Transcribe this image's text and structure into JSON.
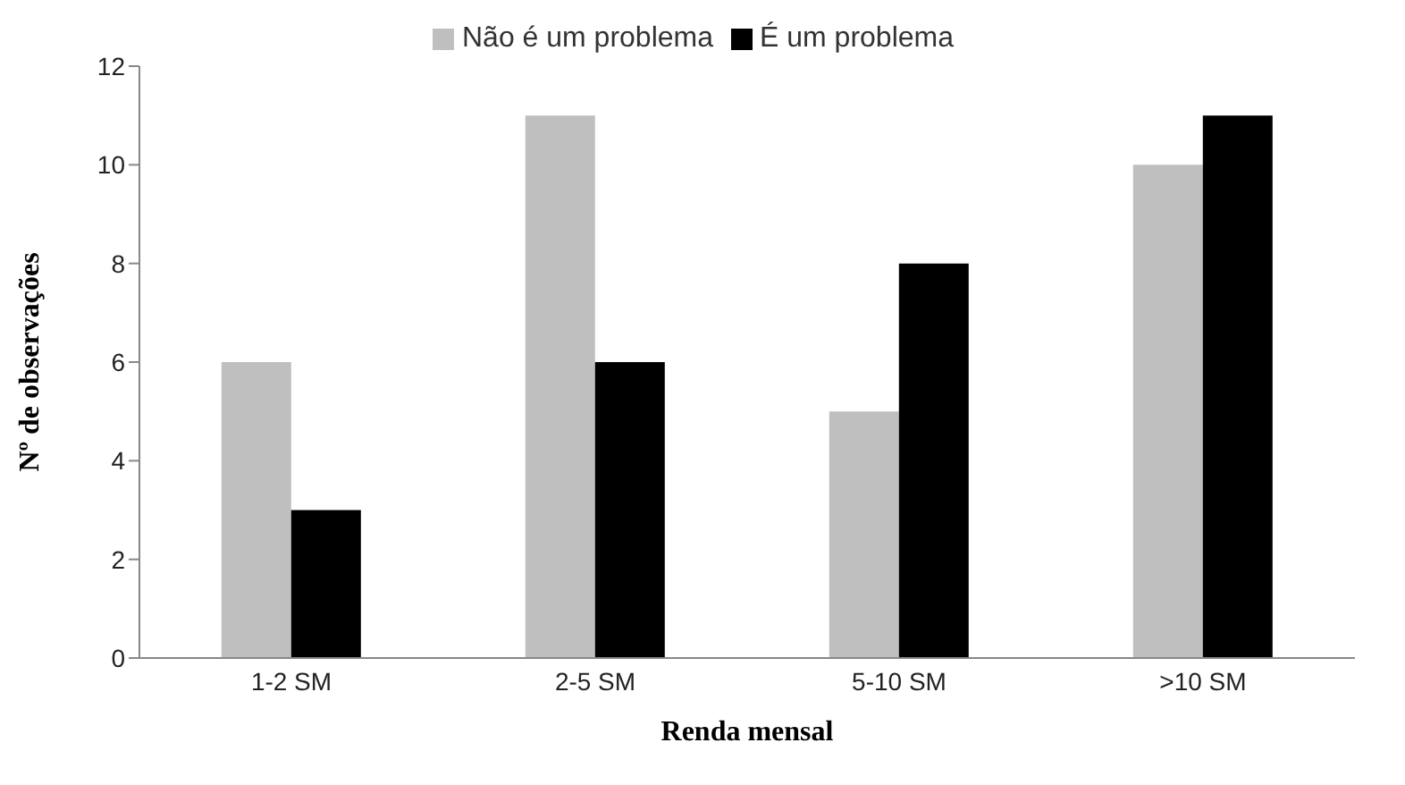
{
  "chart_data": {
    "type": "bar",
    "xlabel": "Renda mensal",
    "ylabel": "Nº de observações",
    "categories": [
      "1-2 SM",
      "2-5 SM",
      "5-10 SM",
      ">10 SM"
    ],
    "series": [
      {
        "name": "Não é um problema",
        "color": "#bfbfbf",
        "values": [
          6,
          11,
          5,
          10
        ]
      },
      {
        "name": "É um problema",
        "color": "#000000",
        "values": [
          3,
          6,
          8,
          11
        ]
      }
    ],
    "ylim": [
      0,
      12
    ],
    "yticks": [
      0,
      2,
      4,
      6,
      8,
      10,
      12
    ],
    "grid": false,
    "legend": "top"
  }
}
